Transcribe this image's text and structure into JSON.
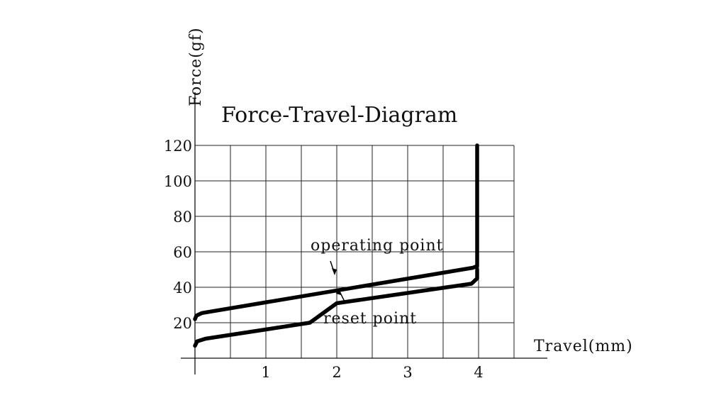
{
  "chart_data": {
    "type": "line",
    "title": "Force-Travel-Diagram",
    "xlabel": "Travel(mm)",
    "ylabel": "Force(gf)",
    "xlim": [
      0,
      4.5
    ],
    "ylim": [
      0,
      120
    ],
    "x_ticks": [
      1,
      2,
      3,
      4
    ],
    "y_ticks": [
      20,
      40,
      60,
      80,
      100,
      120
    ],
    "grid": true,
    "series": [
      {
        "points": [
          [
            0,
            22
          ],
          [
            0.02,
            24
          ],
          [
            0.1,
            25.5
          ],
          [
            3.92,
            51
          ],
          [
            3.98,
            52
          ],
          [
            3.98,
            120
          ]
        ]
      },
      {
        "points": [
          [
            0,
            7
          ],
          [
            0.03,
            9.5
          ],
          [
            0.15,
            11
          ],
          [
            1.62,
            20
          ],
          [
            2,
            31
          ],
          [
            3.9,
            42
          ],
          [
            3.98,
            45
          ],
          [
            3.98,
            50
          ]
        ]
      }
    ],
    "annotations": [
      {
        "text": "operating point",
        "target": [
          1.95,
          38
        ]
      },
      {
        "text": "reset point",
        "target": [
          2.0,
          38.5
        ]
      }
    ]
  }
}
